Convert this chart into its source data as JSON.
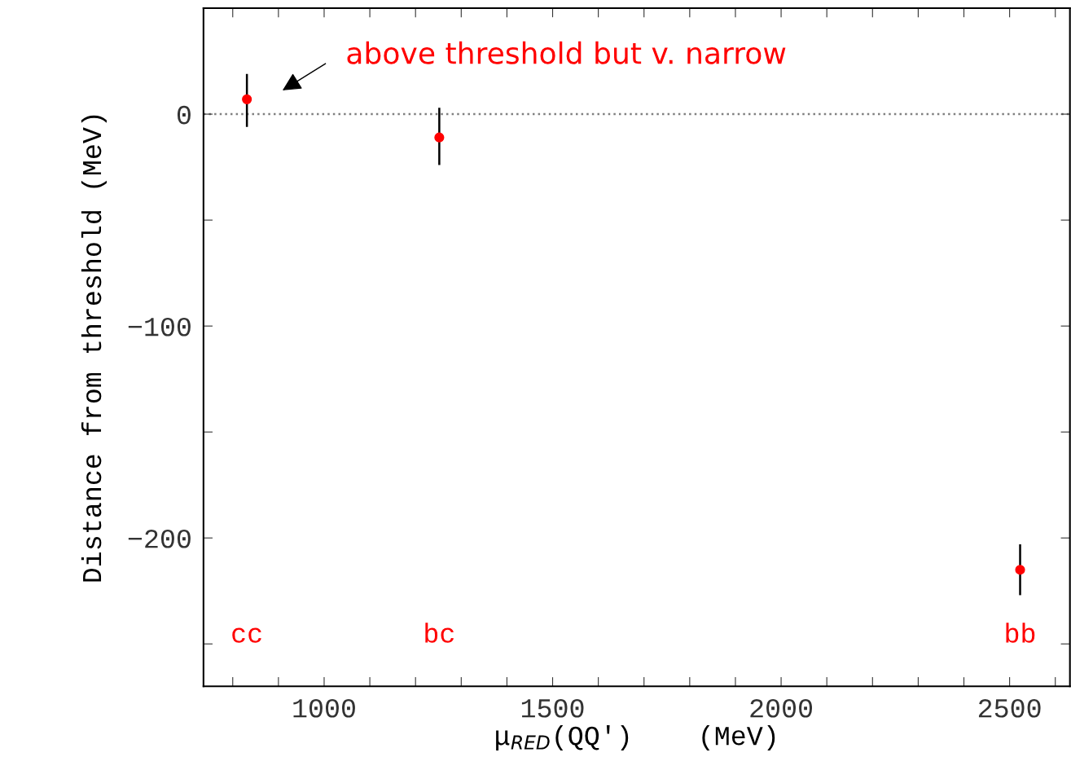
{
  "chart_data": {
    "type": "scatter",
    "xlabel": "μ$_{RED}$(QQ′)    (MeV)",
    "ylabel": "Distance from threshold (MeV)",
    "x": [
      831,
      1252,
      2523
    ],
    "series": [
      {
        "color": "#ff0000",
        "values": [
          7,
          -11,
          -215
        ],
        "errors": [
          [
            -6,
            19
          ],
          [
            -24,
            3
          ],
          [
            -227,
            -203
          ]
        ]
      }
    ],
    "marker": "circle",
    "grid": false,
    "legend": false,
    "xlim": [
      736,
      2632
    ],
    "ylim": [
      -270,
      50
    ],
    "xticks": [
      {
        "value": 800,
        "label": null
      },
      {
        "value": 900,
        "label": null
      },
      1000,
      {
        "value": 1100,
        "label": null
      },
      {
        "value": 1200,
        "label": null
      },
      {
        "value": 1300,
        "label": null
      },
      {
        "value": 1400,
        "label": null
      },
      1500,
      {
        "value": 1600,
        "label": null
      },
      {
        "value": 1700,
        "label": null
      },
      {
        "value": 1800,
        "label": null
      },
      {
        "value": 1900,
        "label": null
      },
      2000,
      {
        "value": 2100,
        "label": null
      },
      {
        "value": 2200,
        "label": null
      },
      {
        "value": 2300,
        "label": null
      },
      {
        "value": 2400,
        "label": null
      },
      2500,
      {
        "value": 2600,
        "label": null
      }
    ],
    "yticks": [
      {
        "value": -250,
        "label": null
      },
      {
        "value": -200,
        "label": "−200"
      },
      {
        "value": -150,
        "label": null
      },
      {
        "value": -100,
        "label": "−100"
      },
      {
        "value": -50,
        "label": null
      },
      0
    ],
    "ref_lines": [
      {
        "axis": "y",
        "value": 0,
        "color": "#808080",
        "line_style": "dotted"
      }
    ],
    "annotations": [
      "above threshold but v. narrow",
      "cc",
      "bc",
      "bb"
    ]
  }
}
